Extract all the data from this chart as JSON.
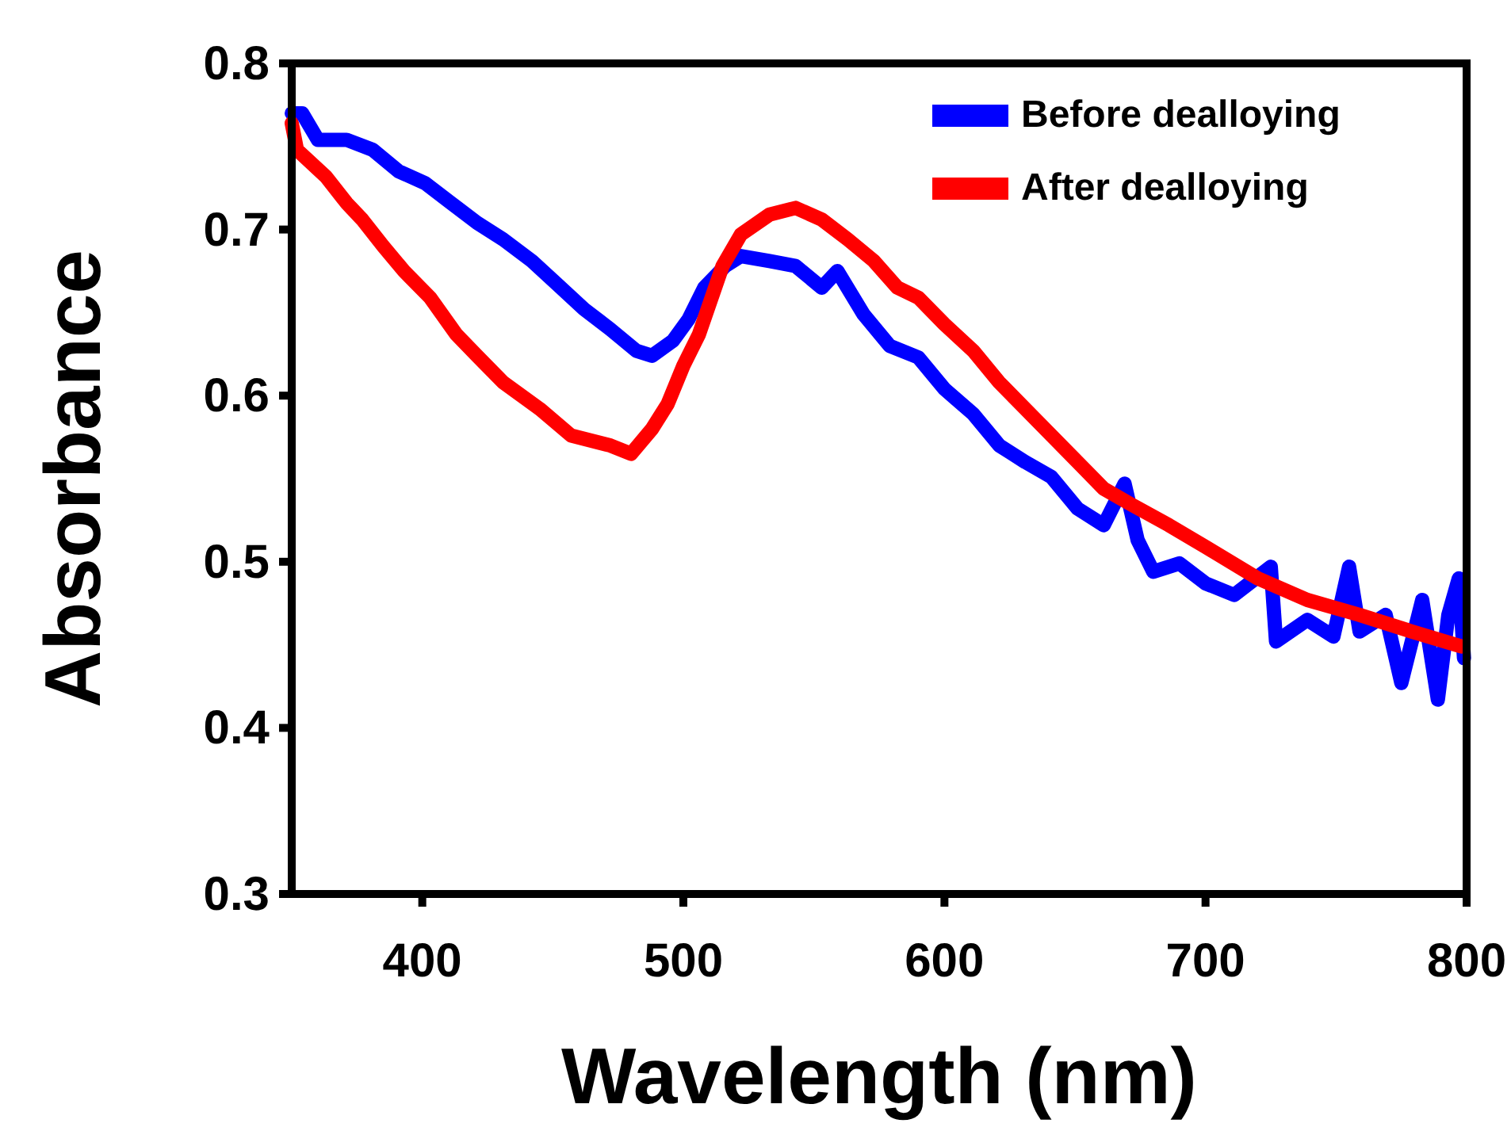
{
  "chart_data": {
    "type": "line",
    "xlabel": "Wavelength (nm)",
    "ylabel": "Absorbance",
    "xlim": [
      350,
      800
    ],
    "xticks": [
      400,
      500,
      600,
      700,
      800
    ],
    "ylim": [
      0.3,
      0.8
    ],
    "yticks": [
      0.3,
      0.4,
      0.5,
      0.6,
      0.7,
      0.8
    ],
    "legend": "top right",
    "grid": false,
    "marker": "none",
    "line_style": "solid",
    "series": [
      {
        "name": "Before dealloying",
        "color": "#0000ff",
        "x": [
          350,
          354,
          360,
          371,
          381,
          391,
          401,
          411,
          421,
          431,
          442,
          451,
          462,
          472,
          482,
          488,
          496,
          502,
          508,
          516,
          522,
          533,
          543,
          553,
          559,
          569,
          579,
          590,
          600,
          611,
          621,
          631,
          641,
          651,
          661,
          669,
          674,
          680,
          690,
          700,
          711,
          725,
          727,
          739,
          749,
          755,
          759,
          769,
          775,
          783,
          789,
          793,
          797,
          799
        ],
        "values": [
          0.77,
          0.77,
          0.754,
          0.754,
          0.748,
          0.735,
          0.728,
          0.716,
          0.704,
          0.694,
          0.681,
          0.668,
          0.652,
          0.64,
          0.627,
          0.624,
          0.633,
          0.646,
          0.665,
          0.678,
          0.684,
          0.681,
          0.678,
          0.665,
          0.675,
          0.649,
          0.63,
          0.623,
          0.604,
          0.589,
          0.57,
          0.56,
          0.551,
          0.532,
          0.522,
          0.547,
          0.513,
          0.494,
          0.499,
          0.487,
          0.48,
          0.497,
          0.452,
          0.465,
          0.455,
          0.497,
          0.458,
          0.468,
          0.427,
          0.477,
          0.417,
          0.468,
          0.49,
          0.442
        ]
      },
      {
        "name": "After dealloying",
        "color": "#ff0000",
        "x": [
          350,
          352,
          363,
          371,
          377,
          385,
          393,
          403,
          413,
          421,
          431,
          445,
          457,
          472,
          480,
          488,
          494,
          500,
          506,
          515,
          522,
          533,
          543,
          553,
          563,
          573,
          582,
          590,
          600,
          611,
          621,
          631,
          641,
          651,
          661,
          671,
          686,
          700,
          720,
          739,
          759,
          779,
          798
        ],
        "values": [
          0.764,
          0.748,
          0.732,
          0.716,
          0.706,
          0.69,
          0.675,
          0.659,
          0.637,
          0.624,
          0.608,
          0.592,
          0.576,
          0.57,
          0.565,
          0.58,
          0.595,
          0.618,
          0.637,
          0.678,
          0.697,
          0.709,
          0.713,
          0.706,
          0.694,
          0.681,
          0.665,
          0.659,
          0.643,
          0.627,
          0.608,
          0.592,
          0.576,
          0.56,
          0.544,
          0.535,
          0.522,
          0.509,
          0.49,
          0.477,
          0.468,
          0.458,
          0.449
        ]
      }
    ]
  }
}
